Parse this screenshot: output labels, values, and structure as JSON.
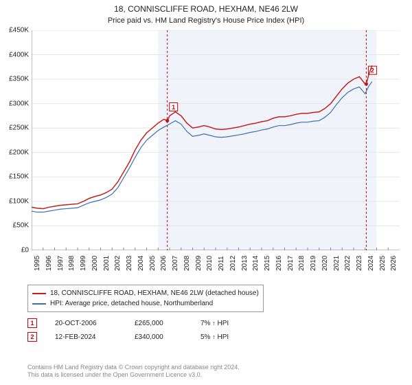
{
  "title": "18, CONNISCLIFFE ROAD, HEXHAM, NE46 2LW",
  "subtitle": "Price paid vs. HM Land Registry's House Price Index (HPI)",
  "chart": {
    "type": "line",
    "background_color": "#ffffff",
    "shaded_region_color": "#f0f4fa",
    "grid_color": "#e6e6e6",
    "xlim": [
      1995,
      2027
    ],
    "ylim": [
      0,
      450000
    ],
    "ytick_step": 50000,
    "ytick_labels": [
      "£0",
      "£50K",
      "£100K",
      "£150K",
      "£200K",
      "£250K",
      "£300K",
      "£350K",
      "£400K",
      "£450K"
    ],
    "xticks": [
      1995,
      1996,
      1997,
      1998,
      1999,
      2000,
      2001,
      2002,
      2003,
      2004,
      2005,
      2006,
      2007,
      2008,
      2009,
      2010,
      2011,
      2012,
      2013,
      2014,
      2015,
      2016,
      2017,
      2018,
      2019,
      2020,
      2021,
      2022,
      2023,
      2024,
      2025,
      2026
    ],
    "sale_marker_color": "#cc0000",
    "sale_marker_dash": "3,3",
    "series": [
      {
        "name": "18, CONNISCLIFFE ROAD, HEXHAM, NE46 2LW (detached house)",
        "color": "#c41e1e",
        "line_width": 1.5,
        "data": [
          [
            1995,
            88000
          ],
          [
            1995.5,
            86000
          ],
          [
            1996,
            85000
          ],
          [
            1996.5,
            88000
          ],
          [
            1997,
            90000
          ],
          [
            1997.5,
            92000
          ],
          [
            1998,
            93000
          ],
          [
            1998.5,
            94000
          ],
          [
            1999,
            95000
          ],
          [
            1999.5,
            100000
          ],
          [
            2000,
            106000
          ],
          [
            2000.5,
            110000
          ],
          [
            2001,
            113000
          ],
          [
            2001.5,
            118000
          ],
          [
            2002,
            125000
          ],
          [
            2002.5,
            140000
          ],
          [
            2003,
            160000
          ],
          [
            2003.5,
            180000
          ],
          [
            2004,
            205000
          ],
          [
            2004.5,
            225000
          ],
          [
            2005,
            240000
          ],
          [
            2005.5,
            250000
          ],
          [
            2006,
            260000
          ],
          [
            2006.5,
            268000
          ],
          [
            2006.8,
            265000
          ],
          [
            2007,
            275000
          ],
          [
            2007.5,
            283000
          ],
          [
            2008,
            275000
          ],
          [
            2008.5,
            260000
          ],
          [
            2009,
            250000
          ],
          [
            2009.5,
            252000
          ],
          [
            2010,
            255000
          ],
          [
            2010.5,
            252000
          ],
          [
            2011,
            248000
          ],
          [
            2011.5,
            247000
          ],
          [
            2012,
            248000
          ],
          [
            2012.5,
            250000
          ],
          [
            2013,
            252000
          ],
          [
            2013.5,
            255000
          ],
          [
            2014,
            258000
          ],
          [
            2014.5,
            260000
          ],
          [
            2015,
            263000
          ],
          [
            2015.5,
            265000
          ],
          [
            2016,
            270000
          ],
          [
            2016.5,
            273000
          ],
          [
            2017,
            273000
          ],
          [
            2017.5,
            275000
          ],
          [
            2018,
            278000
          ],
          [
            2018.5,
            280000
          ],
          [
            2019,
            280000
          ],
          [
            2019.5,
            282000
          ],
          [
            2020,
            283000
          ],
          [
            2020.5,
            290000
          ],
          [
            2021,
            300000
          ],
          [
            2021.5,
            315000
          ],
          [
            2022,
            330000
          ],
          [
            2022.5,
            342000
          ],
          [
            2023,
            350000
          ],
          [
            2023.5,
            355000
          ],
          [
            2024,
            340000
          ],
          [
            2024.1,
            340000
          ],
          [
            2024.3,
            358000
          ],
          [
            2024.6,
            378000
          ]
        ]
      },
      {
        "name": "HPI: Average price, detached house, Northumberland",
        "color": "#3a6fb7",
        "line_width": 1.2,
        "data": [
          [
            1995,
            80000
          ],
          [
            1995.5,
            78000
          ],
          [
            1996,
            78000
          ],
          [
            1996.5,
            80000
          ],
          [
            1997,
            82000
          ],
          [
            1997.5,
            84000
          ],
          [
            1998,
            85000
          ],
          [
            1998.5,
            86000
          ],
          [
            1999,
            87000
          ],
          [
            1999.5,
            92000
          ],
          [
            2000,
            97000
          ],
          [
            2000.5,
            100000
          ],
          [
            2001,
            103000
          ],
          [
            2001.5,
            108000
          ],
          [
            2002,
            115000
          ],
          [
            2002.5,
            128000
          ],
          [
            2003,
            148000
          ],
          [
            2003.5,
            168000
          ],
          [
            2004,
            190000
          ],
          [
            2004.5,
            210000
          ],
          [
            2005,
            225000
          ],
          [
            2005.5,
            235000
          ],
          [
            2006,
            245000
          ],
          [
            2006.5,
            252000
          ],
          [
            2007,
            258000
          ],
          [
            2007.5,
            265000
          ],
          [
            2008,
            258000
          ],
          [
            2008.5,
            243000
          ],
          [
            2009,
            233000
          ],
          [
            2009.5,
            235000
          ],
          [
            2010,
            238000
          ],
          [
            2010.5,
            235000
          ],
          [
            2011,
            232000
          ],
          [
            2011.5,
            231000
          ],
          [
            2012,
            232000
          ],
          [
            2012.5,
            234000
          ],
          [
            2013,
            236000
          ],
          [
            2013.5,
            238000
          ],
          [
            2014,
            241000
          ],
          [
            2014.5,
            243000
          ],
          [
            2015,
            246000
          ],
          [
            2015.5,
            248000
          ],
          [
            2016,
            252000
          ],
          [
            2016.5,
            255000
          ],
          [
            2017,
            255000
          ],
          [
            2017.5,
            257000
          ],
          [
            2018,
            260000
          ],
          [
            2018.5,
            262000
          ],
          [
            2019,
            262000
          ],
          [
            2019.5,
            264000
          ],
          [
            2020,
            265000
          ],
          [
            2020.5,
            272000
          ],
          [
            2021,
            282000
          ],
          [
            2021.5,
            298000
          ],
          [
            2022,
            312000
          ],
          [
            2022.5,
            323000
          ],
          [
            2023,
            330000
          ],
          [
            2023.5,
            334000
          ],
          [
            2024,
            320000
          ],
          [
            2024.3,
            335000
          ],
          [
            2024.6,
            345000
          ]
        ]
      }
    ],
    "sale_markers": [
      {
        "n": 1,
        "x": 2006.8,
        "y": 265000,
        "date": "20-OCT-2006",
        "price": "£265,000",
        "vs": "7%",
        "dir": "↑",
        "vs_label": "HPI"
      },
      {
        "n": 2,
        "x": 2024.1,
        "y": 340000,
        "date": "12-FEB-2024",
        "price": "£340,000",
        "vs": "5%",
        "dir": "↑",
        "vs_label": "HPI"
      }
    ]
  },
  "legend": {
    "rows": [
      {
        "color": "#c41e1e",
        "label": "18, CONNISCLIFFE ROAD, HEXHAM, NE46 2LW (detached house)"
      },
      {
        "color": "#3a6fb7",
        "label": "HPI: Average price, detached house, Northumberland"
      }
    ]
  },
  "footnote_line1": "Contains HM Land Registry data © Crown copyright and database right 2024.",
  "footnote_line2": "This data is licensed under the Open Government Licence v3.0."
}
